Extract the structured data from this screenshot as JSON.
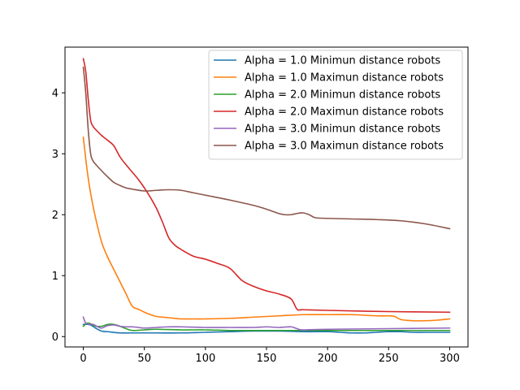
{
  "chart_data": {
    "type": "line",
    "title": "",
    "xlabel": "",
    "ylabel": "",
    "xlim": [
      -15,
      315
    ],
    "ylim": [
      -0.17,
      4.75
    ],
    "x_ticks": [
      0,
      50,
      100,
      150,
      200,
      250,
      300
    ],
    "y_ticks": [
      0,
      1,
      2,
      3,
      4
    ],
    "grid": false,
    "legend_position": "top-right",
    "series": [
      {
        "name": "Alpha = 1.0 Minimun distance robots",
        "color": "#1f77b4",
        "x": [
          0,
          3,
          6,
          10,
          15,
          20,
          30,
          40,
          60,
          80,
          100,
          120,
          140,
          160,
          180,
          200,
          210,
          220,
          230,
          240,
          250,
          260,
          270,
          280,
          290,
          300
        ],
        "y": [
          0.2,
          0.2,
          0.19,
          0.14,
          0.09,
          0.08,
          0.06,
          0.06,
          0.06,
          0.06,
          0.07,
          0.08,
          0.09,
          0.09,
          0.08,
          0.08,
          0.07,
          0.06,
          0.06,
          0.07,
          0.08,
          0.08,
          0.07,
          0.07,
          0.07,
          0.07
        ]
      },
      {
        "name": "Alpha = 1.0 Maximun distance robots",
        "color": "#ff7f0e",
        "x": [
          0,
          3,
          6,
          10,
          15,
          20,
          25,
          30,
          35,
          40,
          45,
          50,
          55,
          60,
          70,
          80,
          90,
          100,
          120,
          140,
          160,
          180,
          200,
          220,
          240,
          250,
          255,
          260,
          270,
          280,
          290,
          300
        ],
        "y": [
          3.27,
          2.75,
          2.35,
          1.95,
          1.55,
          1.3,
          1.1,
          0.9,
          0.7,
          0.5,
          0.45,
          0.4,
          0.36,
          0.33,
          0.31,
          0.29,
          0.29,
          0.29,
          0.3,
          0.32,
          0.34,
          0.36,
          0.36,
          0.36,
          0.34,
          0.34,
          0.33,
          0.28,
          0.26,
          0.26,
          0.27,
          0.29
        ]
      },
      {
        "name": "Alpha = 2.0 Minimun distance robots",
        "color": "#2ca02c",
        "x": [
          0,
          3,
          6,
          10,
          15,
          20,
          25,
          30,
          35,
          40,
          50,
          60,
          80,
          100,
          120,
          150,
          180,
          200,
          250,
          300
        ],
        "y": [
          0.17,
          0.22,
          0.21,
          0.17,
          0.17,
          0.2,
          0.2,
          0.17,
          0.13,
          0.1,
          0.11,
          0.12,
          0.11,
          0.11,
          0.1,
          0.1,
          0.1,
          0.1,
          0.1,
          0.1
        ]
      },
      {
        "name": "Alpha = 2.0 Maximun distance robots",
        "color": "#d62728",
        "x": [
          0,
          2,
          4,
          6,
          8,
          10,
          15,
          20,
          25,
          30,
          35,
          40,
          45,
          50,
          55,
          60,
          65,
          70,
          75,
          80,
          90,
          100,
          110,
          120,
          130,
          140,
          150,
          160,
          170,
          175,
          180,
          200,
          250,
          300
        ],
        "y": [
          4.56,
          4.35,
          3.9,
          3.55,
          3.45,
          3.4,
          3.3,
          3.22,
          3.13,
          2.95,
          2.82,
          2.7,
          2.58,
          2.44,
          2.28,
          2.1,
          1.87,
          1.62,
          1.5,
          1.43,
          1.32,
          1.27,
          1.2,
          1.12,
          0.92,
          0.82,
          0.75,
          0.7,
          0.62,
          0.45,
          0.44,
          0.43,
          0.41,
          0.4
        ]
      },
      {
        "name": "Alpha = 3.0 Minimun distance robots",
        "color": "#9467bd",
        "x": [
          0,
          2,
          5,
          8,
          12,
          15,
          20,
          25,
          30,
          35,
          40,
          45,
          50,
          60,
          70,
          80,
          100,
          120,
          140,
          150,
          160,
          170,
          175,
          180,
          200,
          300
        ],
        "y": [
          0.32,
          0.22,
          0.2,
          0.2,
          0.16,
          0.14,
          0.18,
          0.19,
          0.17,
          0.16,
          0.16,
          0.15,
          0.14,
          0.15,
          0.16,
          0.16,
          0.15,
          0.15,
          0.15,
          0.16,
          0.15,
          0.16,
          0.13,
          0.11,
          0.12,
          0.14
        ]
      },
      {
        "name": "Alpha = 3.0 Maximun distance robots",
        "color": "#8c564b",
        "x": [
          0,
          2,
          4,
          6,
          8,
          10,
          15,
          20,
          25,
          30,
          35,
          40,
          50,
          60,
          70,
          80,
          90,
          100,
          120,
          140,
          150,
          160,
          165,
          170,
          175,
          180,
          185,
          190,
          200,
          220,
          240,
          260,
          280,
          300
        ],
        "y": [
          4.42,
          4.0,
          3.4,
          3.0,
          2.88,
          2.83,
          2.72,
          2.62,
          2.53,
          2.48,
          2.44,
          2.42,
          2.39,
          2.4,
          2.41,
          2.4,
          2.36,
          2.32,
          2.24,
          2.15,
          2.09,
          2.02,
          2.0,
          2.0,
          2.02,
          2.03,
          2.0,
          1.95,
          1.94,
          1.93,
          1.92,
          1.9,
          1.85,
          1.77
        ]
      }
    ]
  }
}
